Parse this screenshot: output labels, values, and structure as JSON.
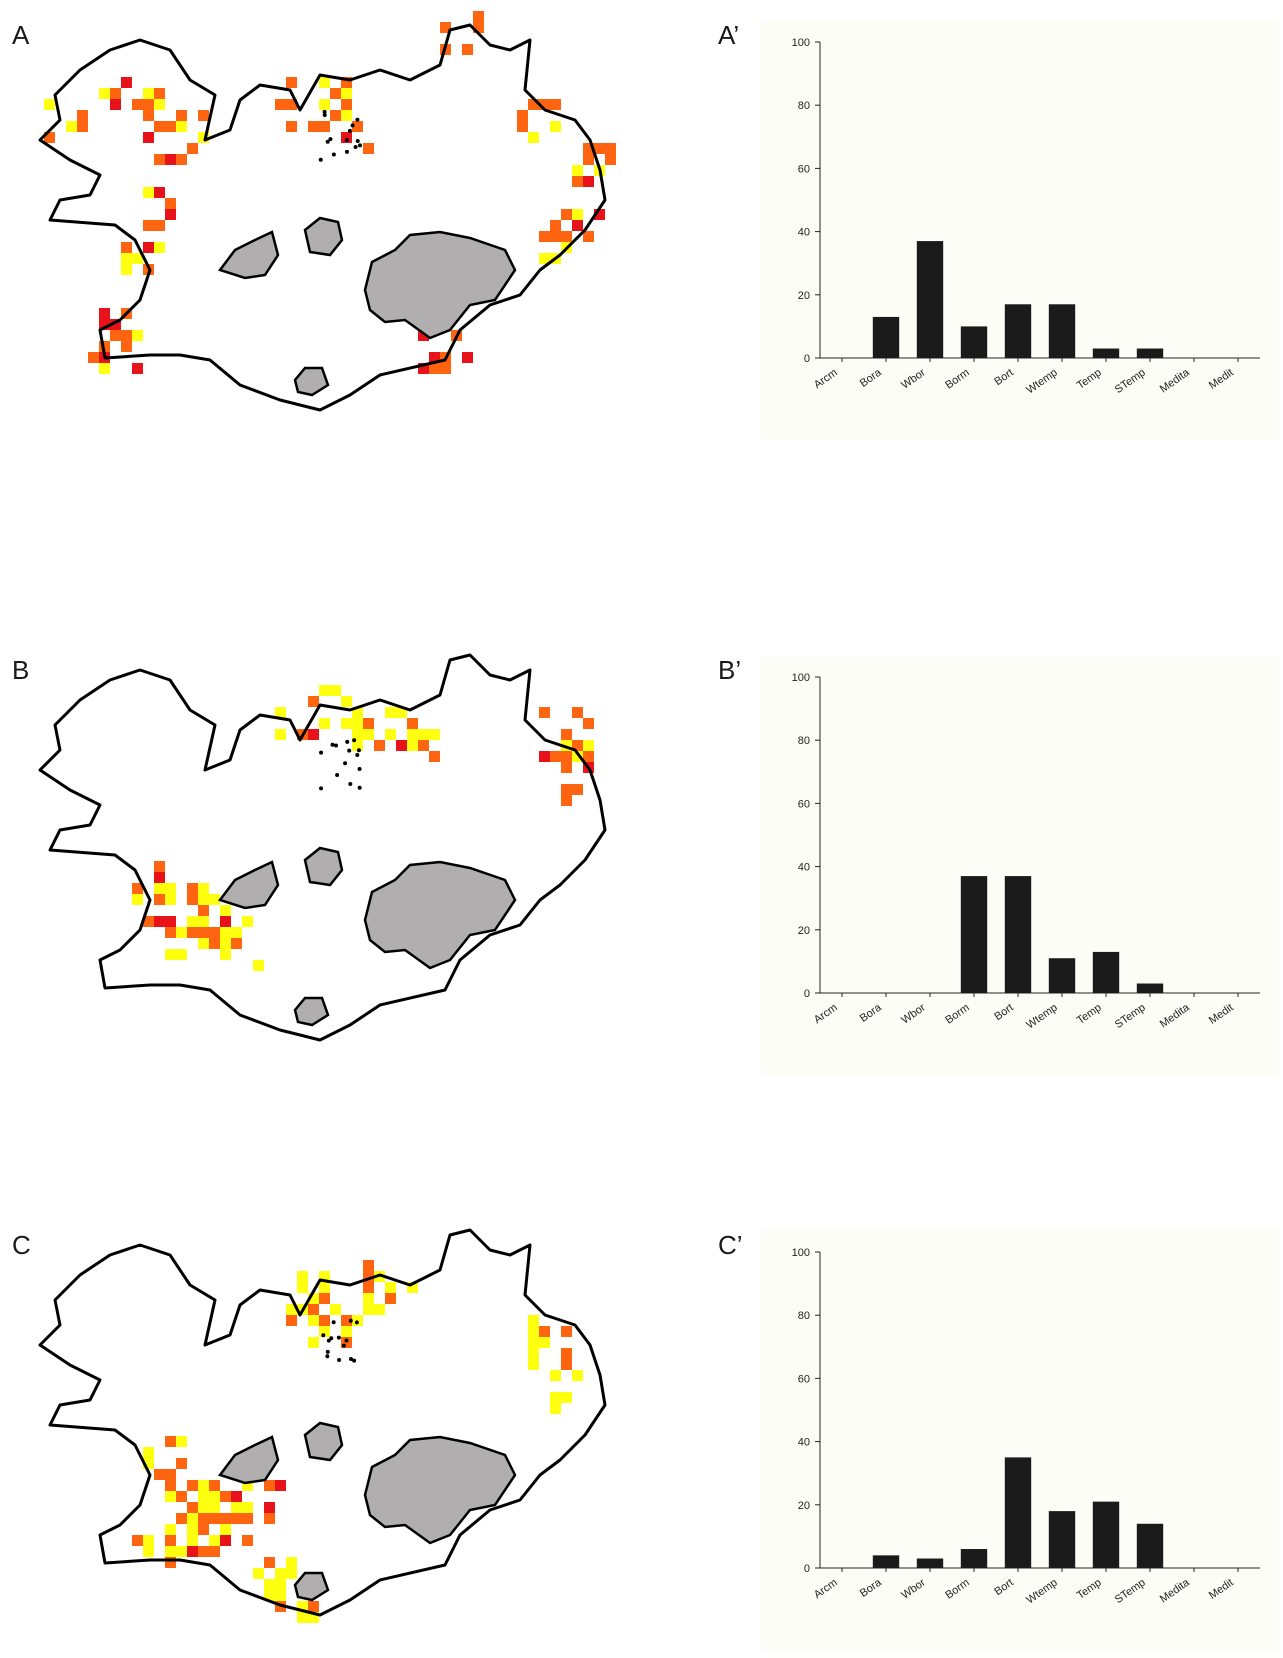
{
  "panels": {
    "a_label": "A",
    "a_prime_label": "A’",
    "b_label": "B",
    "b_prime_label": "B’",
    "c_label": "C",
    "c_prime_label": "C’"
  },
  "colors": {
    "high": "#e8121b",
    "medium": "#ff6410",
    "low": "#ffff10",
    "glacier": "#b0aeae",
    "coast": "#000000",
    "bar": "#1a1a1a"
  },
  "chart_data": [
    {
      "type": "bar",
      "panel": "A’",
      "categories": [
        "Arcm",
        "Bora",
        "Wbor",
        "Borm",
        "Bort",
        "Wtemp",
        "Temp",
        "STemp",
        "Medita",
        "Medit"
      ],
      "values": [
        0,
        13,
        37,
        10,
        17,
        17,
        3,
        3,
        0,
        0
      ],
      "ylim": [
        0,
        100
      ],
      "yticks": [
        0,
        20,
        40,
        60,
        80,
        100
      ],
      "title": "",
      "xlabel": "",
      "ylabel": "",
      "grid": false
    },
    {
      "type": "bar",
      "panel": "B’",
      "categories": [
        "Arcm",
        "Bora",
        "Wbor",
        "Borm",
        "Bort",
        "Wtemp",
        "Temp",
        "STemp",
        "Medita",
        "Medit"
      ],
      "values": [
        0,
        0,
        0,
        37,
        37,
        11,
        13,
        3,
        0,
        0
      ],
      "ylim": [
        0,
        100
      ],
      "yticks": [
        0,
        20,
        40,
        60,
        80,
        100
      ],
      "title": "",
      "xlabel": "",
      "ylabel": "",
      "grid": false
    },
    {
      "type": "bar",
      "panel": "C’",
      "categories": [
        "Arcm",
        "Bora",
        "Wbor",
        "Borm",
        "Bort",
        "Wtemp",
        "Temp",
        "STemp",
        "Medita",
        "Medit"
      ],
      "values": [
        0,
        4,
        3,
        6,
        35,
        18,
        21,
        14,
        0,
        0
      ],
      "ylim": [
        0,
        100
      ],
      "yticks": [
        0,
        20,
        40,
        60,
        80,
        100
      ],
      "title": "",
      "xlabel": "",
      "ylabel": "",
      "grid": false
    }
  ]
}
